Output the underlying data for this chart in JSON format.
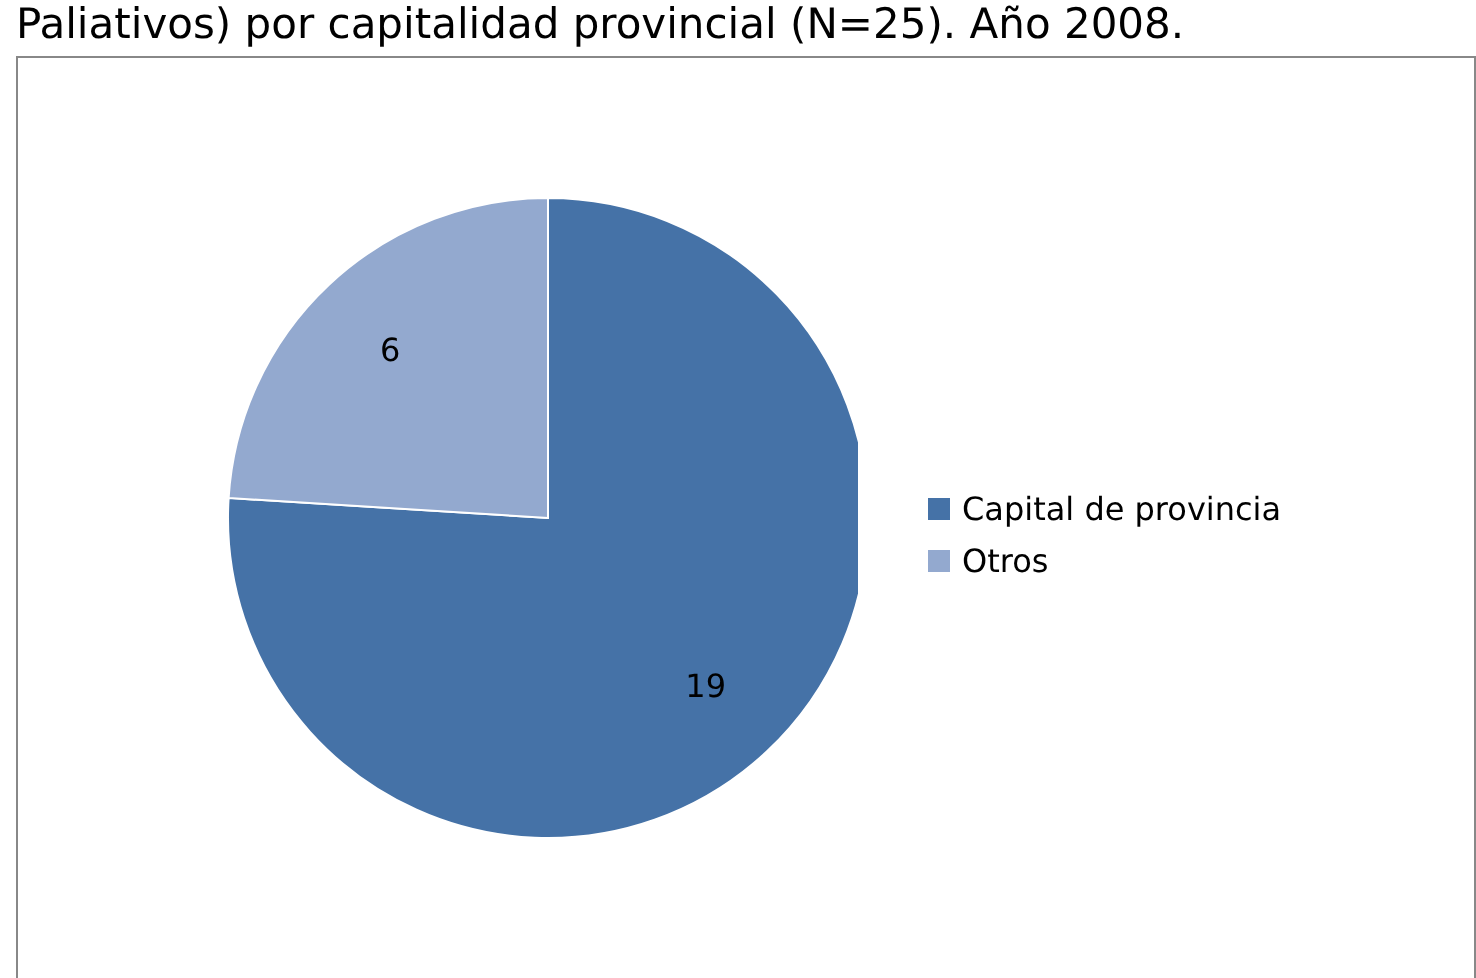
{
  "chart_data": {
    "type": "pie",
    "title": "Paliativos) por capitalidad provincial (N=25). Año 2008.",
    "categories": [
      "Capital de provincia",
      "Otros"
    ],
    "values": [
      19,
      6
    ],
    "colors": [
      "#4572a7",
      "#93a9cf"
    ],
    "data_labels": true,
    "legend": "right"
  }
}
